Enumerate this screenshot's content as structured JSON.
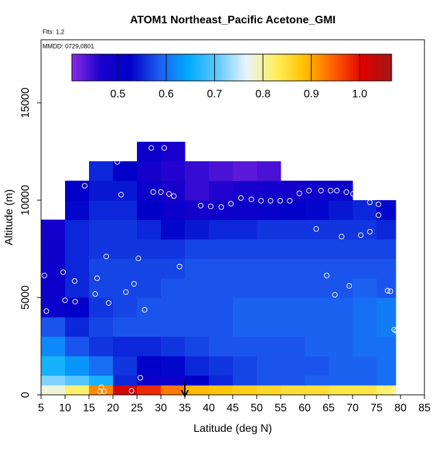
{
  "chart_data": {
    "type": "heatmap",
    "title": "ATOM1 Northeast_Pacific Acetone_GMI",
    "subtitle": "Flts: 1,2",
    "annotation": "MMDD: 0729,0801",
    "xlabel": "Latitude (deg N)",
    "ylabel": "Altitude (m)",
    "xlim": [
      5,
      85
    ],
    "xticks": [
      5,
      10,
      15,
      20,
      25,
      30,
      35,
      40,
      45,
      50,
      55,
      60,
      65,
      70,
      75,
      80,
      85
    ],
    "ylim": [
      0,
      18240
    ],
    "yticks": [
      0,
      5000,
      10000,
      15000
    ],
    "x_edges": [
      5,
      10,
      15,
      20,
      25,
      30,
      35,
      40,
      45,
      50,
      55,
      60,
      65,
      70,
      75,
      79
    ],
    "y_edges": [
      0,
      500,
      1000,
      2000,
      3000,
      4000,
      5000,
      6000,
      7000,
      8000,
      9000,
      10000,
      11000,
      12000,
      13000
    ],
    "z": [
      [
        0.78,
        0.82,
        0.92,
        1.02,
        0.98,
        0.93,
        0.89,
        0.88,
        0.87,
        0.86,
        0.85,
        0.85,
        0.84,
        0.84,
        0.82
      ],
      [
        0.72,
        0.7,
        0.66,
        0.55,
        0.5,
        0.5,
        0.52,
        0.55,
        0.57,
        0.58,
        0.58,
        0.59,
        0.59,
        0.59,
        0.6
      ],
      [
        0.66,
        0.63,
        0.6,
        0.56,
        0.52,
        0.53,
        0.55,
        0.56,
        0.57,
        0.58,
        0.58,
        0.58,
        0.59,
        0.59,
        0.6
      ],
      [
        0.62,
        0.58,
        0.56,
        0.55,
        0.55,
        0.56,
        0.57,
        0.58,
        0.58,
        0.58,
        0.58,
        0.59,
        0.59,
        0.6,
        0.6
      ],
      [
        0.58,
        0.55,
        0.57,
        0.58,
        0.58,
        0.58,
        0.58,
        0.58,
        0.59,
        0.59,
        0.59,
        0.59,
        0.59,
        0.6,
        0.61
      ],
      [
        0.5,
        0.52,
        0.56,
        0.57,
        0.58,
        0.58,
        0.58,
        0.58,
        0.59,
        0.59,
        0.59,
        0.59,
        0.59,
        0.6,
        0.61
      ],
      [
        0.5,
        0.55,
        0.57,
        0.57,
        0.57,
        0.58,
        0.58,
        0.58,
        0.58,
        0.58,
        0.58,
        0.58,
        0.58,
        0.59,
        0.58
      ],
      [
        0.49,
        0.55,
        0.57,
        0.57,
        0.57,
        0.57,
        0.58,
        0.58,
        0.58,
        0.58,
        0.58,
        0.58,
        0.58,
        0.58,
        0.58
      ],
      [
        0.49,
        0.55,
        0.56,
        0.56,
        0.56,
        0.56,
        0.57,
        0.57,
        0.57,
        0.57,
        0.57,
        0.57,
        0.57,
        0.57,
        0.57
      ],
      [
        0.48,
        0.55,
        0.56,
        0.56,
        0.55,
        0.53,
        0.54,
        0.55,
        0.55,
        0.56,
        0.56,
        0.56,
        0.56,
        0.56,
        0.55
      ],
      [
        null,
        0.53,
        0.55,
        0.55,
        0.52,
        0.5,
        0.48,
        0.49,
        0.5,
        0.51,
        0.52,
        0.53,
        0.54,
        0.55,
        0.53
      ],
      [
        null,
        0.52,
        0.54,
        0.54,
        0.5,
        0.47,
        0.45,
        0.46,
        0.47,
        0.48,
        0.48,
        0.49,
        0.5,
        null,
        null
      ],
      [
        null,
        null,
        0.55,
        0.52,
        0.48,
        0.46,
        0.45,
        0.44,
        0.43,
        0.44,
        null,
        null,
        null,
        null,
        null
      ],
      [
        null,
        null,
        null,
        null,
        0.5,
        0.47,
        null,
        null,
        null,
        null,
        null,
        null,
        null,
        null,
        null
      ]
    ],
    "clim": [
      0.405,
      1.066
    ],
    "cticks": [
      0.5,
      0.6,
      0.7,
      0.8,
      0.9,
      {
        "value": 1,
        "label": "1.0"
      }
    ],
    "colors": [
      "#8a2be2",
      "#1a00cc",
      "#0000c8",
      "#1e5cf0",
      "#00aaff",
      "#60c8ff",
      "#e8f4ff",
      "#fff060",
      "#ffc000",
      "#ff6000",
      "#e00000",
      "#a01818"
    ],
    "points": {
      "x": [
        5.7,
        6.1,
        7.4,
        8,
        9.6,
        10,
        12,
        12.1,
        14.1,
        14.1,
        16.3,
        16.7,
        18.6,
        19.1,
        20.9,
        21.7,
        22.7,
        24.4,
        25.3,
        26.6,
        28,
        28.4,
        30,
        30.7,
        31.7,
        32.7,
        33.9,
        38.3,
        40.4,
        42.6,
        44.6,
        46.7,
        48.9,
        50.9,
        52.9,
        54.9,
        56.9,
        58.9,
        60.9,
        62.4,
        63.4,
        64.6,
        65.4,
        66.3,
        66.7,
        67.4,
        67.7,
        68.7,
        69.3,
        70.1,
        71.7,
        73.6,
        73.6,
        75.4,
        75.4,
        77.3,
        77.9,
        78.7,
        79.1,
        78.7,
        25.7,
        17.6,
        17.3,
        18.1,
        23.9
      ],
      "y": [
        6130,
        4300,
        10600,
        11300,
        6300,
        4860,
        5850,
        4790,
        11300,
        10740,
        5180,
        5990,
        7110,
        4720,
        11970,
        10280,
        5280,
        5700,
        7010,
        4370,
        12680,
        10420,
        10420,
        12680,
        10320,
        10210,
        6590,
        9720,
        9680,
        9650,
        9820,
        10110,
        10040,
        9970,
        9970,
        9970,
        9970,
        10350,
        10490,
        8520,
        10490,
        6130,
        10490,
        5140,
        10490,
        11370,
        8130,
        10420,
        5600,
        10320,
        8200,
        8380,
        9890,
        9790,
        9230,
        5350,
        5320,
        3350,
        3280,
        210,
        880,
        390,
        180,
        180,
        210
      ],
      "color": "#ffffff"
    },
    "arrow_lat": 35
  }
}
